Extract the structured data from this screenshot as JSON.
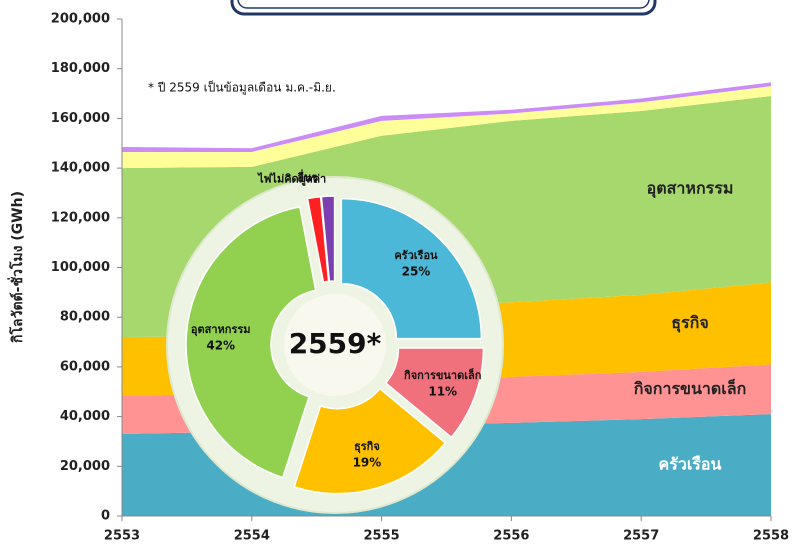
{
  "chart_data": [
    {
      "type": "area",
      "annotation": "* ปี 2559 เป็นข้อมูลเดือน ม.ค.-มิ.ย.",
      "y_label": "กิโลวัตต์-ชั่วโมง (GWh)",
      "categories": [
        "2553",
        "2554",
        "2555",
        "2556",
        "2557",
        "2558"
      ],
      "series": [
        {
          "name": "ครัวเรือน",
          "color": "#4bacc6",
          "values": [
            33000,
            34000,
            36000,
            37500,
            39000,
            41000
          ]
        },
        {
          "name": "กิจการขนาดเล็ก",
          "color": "#ff9393",
          "values": [
            15500,
            15000,
            17000,
            18500,
            19000,
            20000
          ]
        },
        {
          "name": "ธุรกิจ",
          "color": "#ffc000",
          "values": [
            23500,
            23500,
            31000,
            30000,
            31000,
            33000
          ]
        },
        {
          "name": "อุตสาหกรรม",
          "color": "#a6d86e",
          "values": [
            68000,
            68000,
            69000,
            73000,
            74000,
            75000
          ]
        },
        {
          "name": "ไฟไม่คิดมูลค่า",
          "color": "#ffff99",
          "values": [
            6500,
            6000,
            6000,
            3000,
            3500,
            4000
          ]
        },
        {
          "name": "อื่นๆ",
          "color": "#cc8cf5",
          "values": [
            2000,
            1500,
            2000,
            1500,
            1500,
            1500
          ]
        }
      ],
      "ylim": [
        0,
        200000
      ],
      "yticks": [
        0,
        {
          "value": 20000,
          "label": "20,000"
        },
        {
          "value": 40000,
          "label": "40,000"
        },
        {
          "value": 60000,
          "label": "60,000"
        },
        {
          "value": 80000,
          "label": "80,000"
        },
        {
          "value": 100000,
          "label": "100,000"
        },
        {
          "value": 120000,
          "label": "120,000"
        },
        {
          "value": 140000,
          "label": "140,000"
        },
        {
          "value": 160000,
          "label": "160,000"
        },
        {
          "value": 180000,
          "label": "180,000"
        },
        {
          "value": 200000,
          "label": "200,000"
        }
      ]
    },
    {
      "type": "pie",
      "title": "2559*",
      "categories": [
        "ครัวเรือน",
        "กิจการขนาดเล็ก",
        "ธุรกิจ",
        "อุตสาหกรรม",
        "ไฟไม่คิดมูลค่า",
        "อื่นๆ"
      ],
      "values": [
        25,
        11,
        19,
        42,
        1.5,
        1.5
      ],
      "value_labels": [
        "25%",
        "11%",
        "19%",
        "42%",
        null,
        null
      ],
      "colors": [
        "#4bb8d8",
        "#f0707c",
        "#ffc000",
        "#92d050",
        "#ff2020",
        "#7b3fb0"
      ]
    }
  ]
}
